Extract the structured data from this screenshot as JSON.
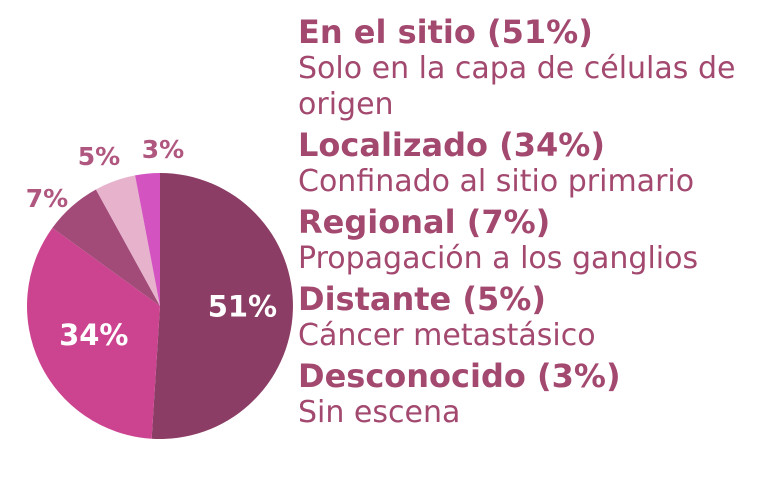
{
  "chart_data": {
    "type": "pie",
    "categories": [
      "En el sitio",
      "Localizado",
      "Regional",
      "Distante",
      "Desconocido"
    ],
    "values": [
      51,
      34,
      7,
      5,
      3
    ],
    "slice_labels": [
      "51%",
      "34%",
      "7%",
      "5%",
      "3%"
    ],
    "colors": [
      "#8b3d65",
      "#cc4490",
      "#a24a78",
      "#e6b2cc",
      "#d354c0"
    ],
    "start_angle_deg": 0,
    "direction": "clockwise",
    "legend_position": "right",
    "legend": [
      {
        "title": "En el sitio (51%)",
        "description": "Solo en la capa de células de origen"
      },
      {
        "title": "Localizado (34%)",
        "description": "Confinado al sitio primario"
      },
      {
        "title": "Regional (7%)",
        "description": "Propagación a los ganglios"
      },
      {
        "title": "Distante (5%)",
        "description": "Cáncer metastásico"
      },
      {
        "title": "Desconocido (3%)",
        "description": "Sin escena"
      }
    ]
  },
  "colors": {
    "legend_text": "#a3496f",
    "outside_label": "#b0577f",
    "inside_label": "#ffffff"
  }
}
